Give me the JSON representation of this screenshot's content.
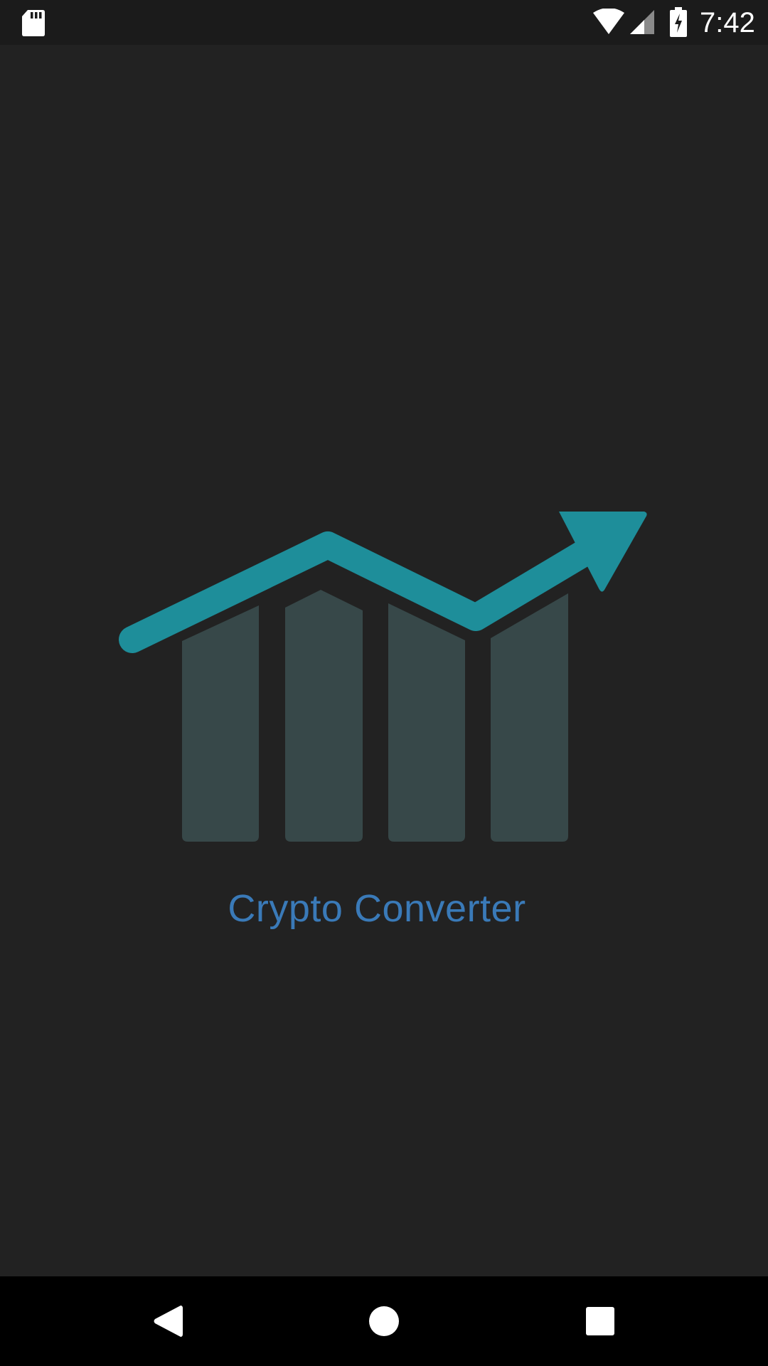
{
  "status_bar": {
    "time": "7:42",
    "icons": [
      "sd-card-icon",
      "wifi-icon",
      "cell-signal-icon",
      "battery-charging-icon"
    ]
  },
  "splash": {
    "app_name": "Crypto Converter",
    "logo": "rising-chart-logo",
    "colors": {
      "background": "#222222",
      "arrow": "#1e8e9a",
      "bars": "#374849",
      "title": "#3a7ab8"
    }
  },
  "nav_bar": {
    "buttons": [
      "back-icon",
      "home-icon",
      "recents-icon"
    ]
  }
}
